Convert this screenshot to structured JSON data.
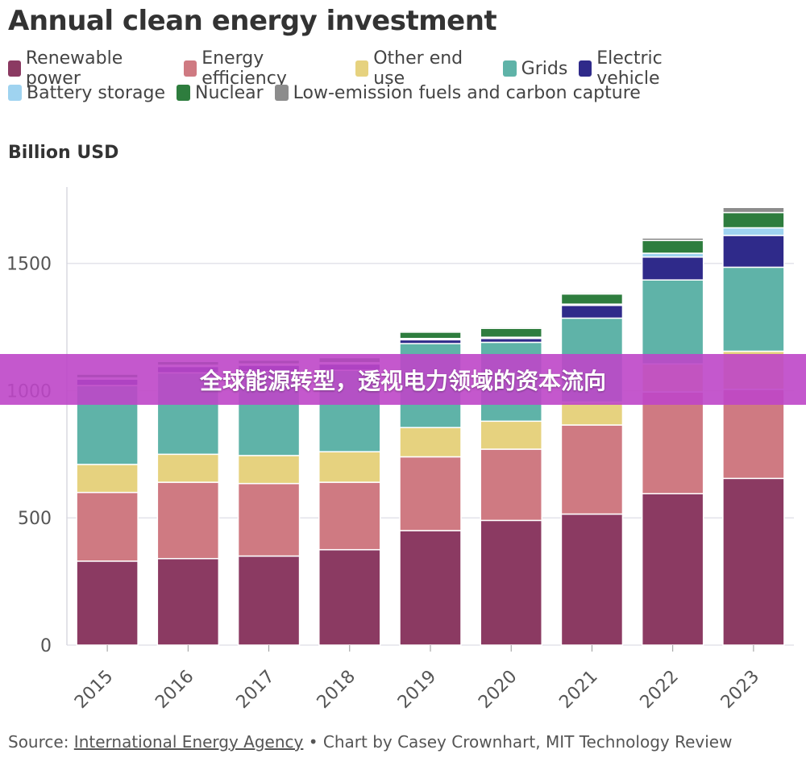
{
  "page": {
    "title": "Annual clean energy investment",
    "unit_label": "Billion USD",
    "banner_text": "全球能源转型，透视电力领域的资本流向",
    "source_prefix": "Source: ",
    "source_link": "International Energy Agency",
    "source_suffix": " • Chart by Casey Crownhart, MIT Technology Review"
  },
  "legend": {
    "row1": [
      {
        "label": "Renewable power",
        "color": "#8b3a62"
      },
      {
        "label": "Energy efficiency",
        "color": "#cf7a82"
      },
      {
        "label": "Other end use",
        "color": "#e6d27f"
      },
      {
        "label": "Grids",
        "color": "#5fb3a8"
      },
      {
        "label": "Electric vehicle",
        "color": "#2f2a8a"
      }
    ],
    "row2": [
      {
        "label": "Battery storage",
        "color": "#9fd3f0"
      },
      {
        "label": "Nuclear",
        "color": "#2e7d3e"
      },
      {
        "label": "Low-emission fuels and carbon capture",
        "color": "#8c8c8c"
      }
    ]
  },
  "chart_data": {
    "type": "bar",
    "stacked": true,
    "title": "Annual clean energy investment",
    "ylabel": "Billion USD",
    "xlabel": "",
    "ylim": [
      0,
      1800
    ],
    "yticks": [
      0,
      500,
      1000,
      1500
    ],
    "categories": [
      "2015",
      "2016",
      "2017",
      "2018",
      "2019",
      "2020",
      "2021",
      "2022",
      "2023"
    ],
    "series": [
      {
        "name": "Renewable power",
        "color": "#8b3a62",
        "values": [
          330,
          340,
          350,
          375,
          450,
          490,
          515,
          595,
          655
        ]
      },
      {
        "name": "Energy efficiency",
        "color": "#cf7a82",
        "values": [
          270,
          300,
          285,
          265,
          290,
          280,
          350,
          400,
          350
        ]
      },
      {
        "name": "Other end use",
        "color": "#e6d27f",
        "values": [
          110,
          110,
          110,
          120,
          115,
          110,
          90,
          110,
          150
        ]
      },
      {
        "name": "Grids",
        "color": "#5fb3a8",
        "values": [
          310,
          320,
          330,
          320,
          330,
          310,
          330,
          330,
          330
        ]
      },
      {
        "name": "Electric vehicle",
        "color": "#2f2a8a",
        "values": [
          25,
          25,
          25,
          25,
          15,
          15,
          50,
          90,
          125
        ]
      },
      {
        "name": "Battery storage",
        "color": "#9fd3f0",
        "values": [
          5,
          5,
          5,
          5,
          5,
          5,
          5,
          15,
          30
        ]
      },
      {
        "name": "Nuclear",
        "color": "#2e7d3e",
        "values": [
          15,
          15,
          15,
          20,
          25,
          35,
          40,
          50,
          60
        ]
      },
      {
        "name": "Low-emission fuels and carbon capture",
        "color": "#8c8c8c",
        "values": [
          5,
          5,
          5,
          5,
          5,
          5,
          5,
          10,
          20
        ]
      }
    ],
    "grid": true,
    "legend_position": "top-left"
  }
}
